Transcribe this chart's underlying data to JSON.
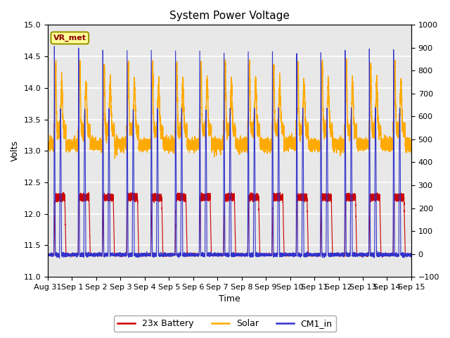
{
  "title": "System Power Voltage",
  "xlabel": "Time",
  "ylabel": "Volts",
  "ylim_left": [
    11.0,
    15.0
  ],
  "ylim_right": [
    -100,
    1000
  ],
  "yticks_left": [
    11.0,
    11.5,
    12.0,
    12.5,
    13.0,
    13.5,
    14.0,
    14.5,
    15.0
  ],
  "yticks_right": [
    -100,
    0,
    100,
    200,
    300,
    400,
    500,
    600,
    700,
    800,
    900,
    1000
  ],
  "background_color": "#e8e8e8",
  "grid_color": "white",
  "line_colors": {
    "battery": "#cc0000",
    "solar": "#ffaa00",
    "cm1": "#3333cc"
  },
  "legend_labels": [
    "23x Battery",
    "Solar",
    "CM1_in"
  ],
  "annotation_box": "VR_met",
  "annotation_box_facecolor": "#ffff99",
  "annotation_box_edgecolor": "#999900",
  "total_days": 15,
  "x_tick_labels": [
    "Aug 31",
    "Sep 1",
    "Sep 2",
    "Sep 3",
    "Sep 4",
    "Sep 5",
    "Sep 6",
    "Sep 7",
    "Sep 8",
    "Sep 9",
    "Sep 10",
    "Sep 11",
    "Sep 12",
    "Sep 13",
    "Sep 14",
    "Sep 15"
  ],
  "x_tick_positions": [
    0,
    1,
    2,
    3,
    4,
    5,
    6,
    7,
    8,
    9,
    10,
    11,
    12,
    13,
    14,
    15
  ]
}
